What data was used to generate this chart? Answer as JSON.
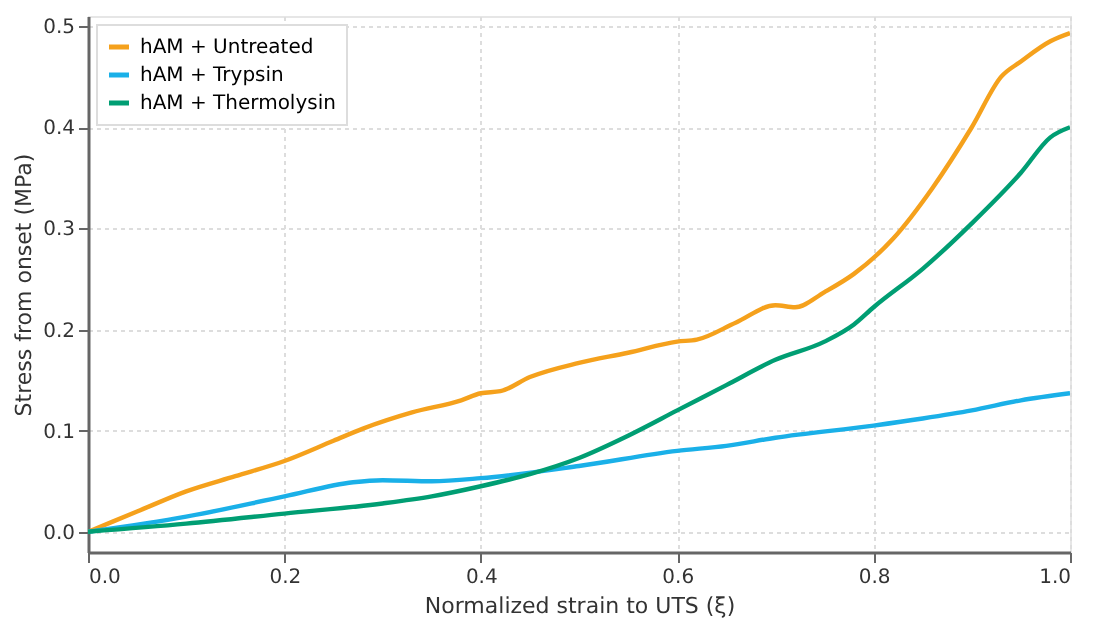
{
  "chart_data": {
    "type": "line",
    "xlabel": "Normalized strain to UTS (ξ)",
    "ylabel": "Stress from onset (MPa)",
    "xlim": [
      0,
      1
    ],
    "ylim": [
      -0.02,
      0.51
    ],
    "xticks": [
      {
        "value": 0,
        "label": "0.0"
      },
      0.2,
      0.4,
      0.6,
      0.8,
      {
        "value": 1,
        "label": "1.0"
      }
    ],
    "yticks": [
      {
        "value": 0,
        "label": "0.0"
      },
      0.1,
      0.2,
      0.3,
      0.4,
      0.5
    ],
    "grid": true,
    "legend": "top left",
    "line_style": "solid",
    "marker": "none",
    "series": [
      {
        "name": "hAM + Untreated",
        "color": "#f5a11c",
        "x": [
          0,
          0.05,
          0.1,
          0.15,
          0.2,
          0.25,
          0.28,
          0.33,
          0.38,
          0.4,
          0.42,
          0.45,
          0.5,
          0.55,
          0.6,
          0.62,
          0.66,
          0.7,
          0.72,
          0.75,
          0.78,
          0.82,
          0.86,
          0.9,
          0.93,
          0.95,
          0.98,
          1.0
        ],
        "values": [
          0,
          0.02,
          0.04,
          0.055,
          0.07,
          0.09,
          0.102,
          0.118,
          0.13,
          0.137,
          0.139,
          0.153,
          0.167,
          0.177,
          0.188,
          0.19,
          0.207,
          0.224,
          0.222,
          0.237,
          0.255,
          0.29,
          0.34,
          0.4,
          0.45,
          0.465,
          0.485,
          0.493
        ]
      },
      {
        "name": "hAM + Trypsin",
        "color": "#1ab0e8",
        "x": [
          0,
          0.1,
          0.2,
          0.27,
          0.3,
          0.35,
          0.4,
          0.5,
          0.6,
          0.65,
          0.7,
          0.8,
          0.85,
          0.9,
          0.95,
          1.0
        ],
        "values": [
          0,
          0.015,
          0.035,
          0.049,
          0.051,
          0.05,
          0.053,
          0.065,
          0.08,
          0.085,
          0.093,
          0.105,
          0.112,
          0.12,
          0.13,
          0.137
        ]
      },
      {
        "name": "hAM + Thermolysin",
        "color": "#009e73",
        "x": [
          0,
          0.1,
          0.2,
          0.3,
          0.35,
          0.4,
          0.45,
          0.5,
          0.55,
          0.6,
          0.65,
          0.7,
          0.75,
          0.78,
          0.8,
          0.85,
          0.9,
          0.95,
          0.98,
          1.0
        ],
        "values": [
          0,
          0.008,
          0.018,
          0.028,
          0.035,
          0.045,
          0.057,
          0.073,
          0.095,
          0.12,
          0.145,
          0.17,
          0.188,
          0.205,
          0.222,
          0.26,
          0.305,
          0.355,
          0.39,
          0.4
        ]
      }
    ]
  }
}
